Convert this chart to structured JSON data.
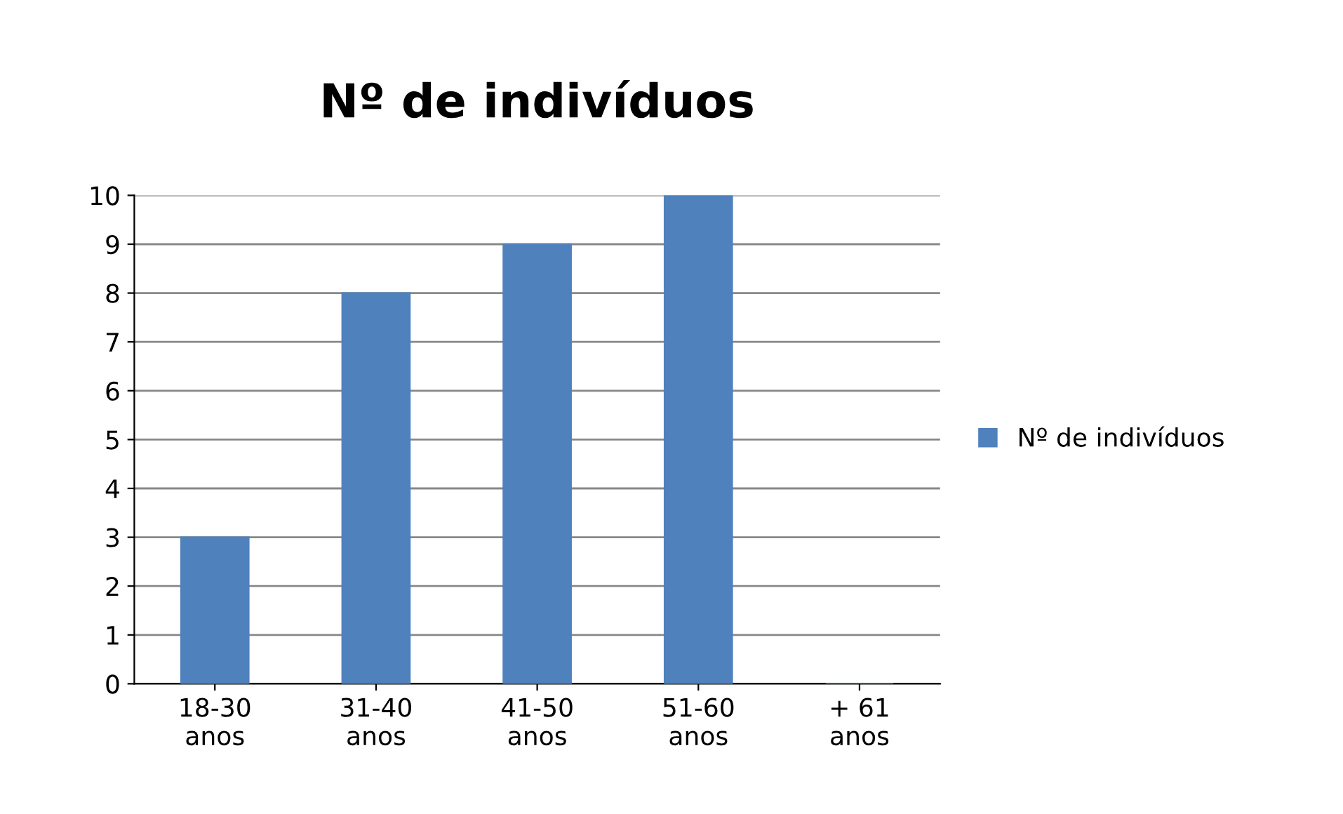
{
  "chart_data": {
    "type": "bar",
    "title": "Nº de indivíduos",
    "categories": [
      "18-30 anos",
      "31-40 anos",
      "41-50 anos",
      "51-60 anos",
      "+ 61 anos"
    ],
    "series": [
      {
        "name": "Nº de indivíduos",
        "color": "#4f81bd",
        "values": [
          3,
          8,
          9,
          10,
          0
        ]
      }
    ],
    "ylim": [
      0,
      10
    ],
    "yticks": [
      0,
      1,
      2,
      3,
      4,
      5,
      6,
      7,
      8,
      9,
      10
    ],
    "grid": "y",
    "legend": "right"
  }
}
